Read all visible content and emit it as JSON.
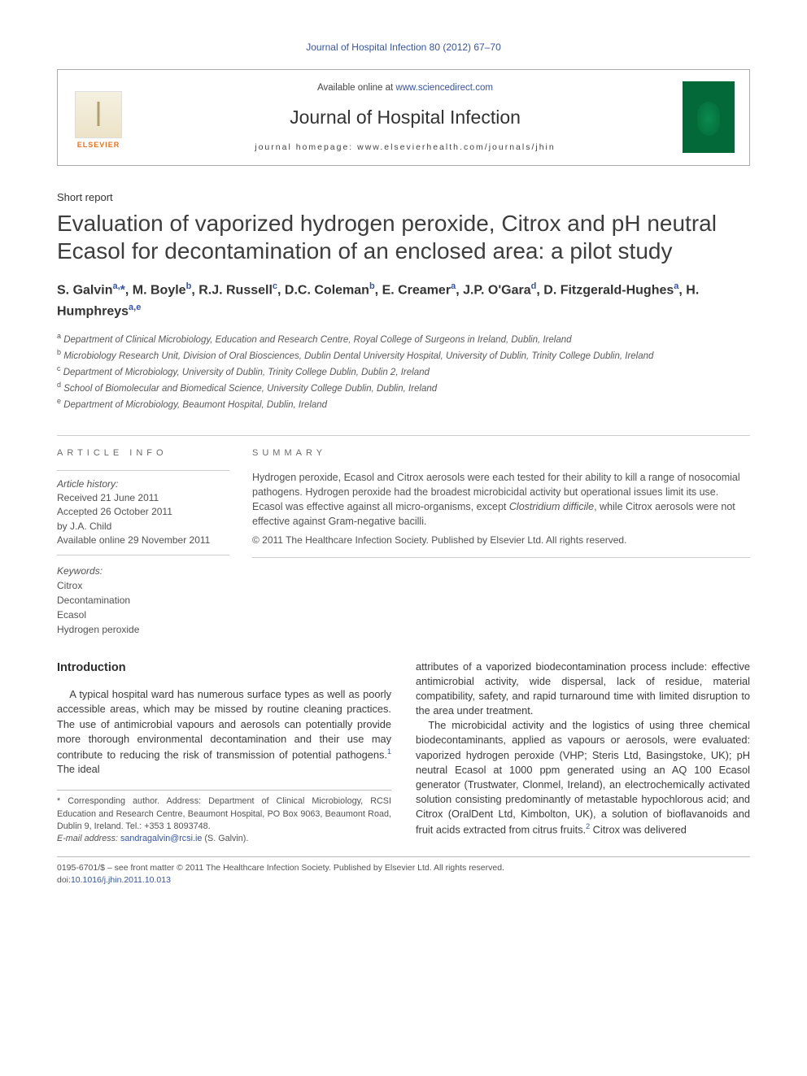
{
  "citation": "Journal of Hospital Infection 80 (2012) 67–70",
  "header": {
    "elsevier_label": "ELSEVIER",
    "available_prefix": "Available online at ",
    "available_link": "www.sciencedirect.com",
    "journal_name": "Journal of Hospital Infection",
    "homepage": "journal homepage: www.elsevierhealth.com/journals/jhin"
  },
  "article_type": "Short report",
  "title": "Evaluation of vaporized hydrogen peroxide, Citrox and pH neutral Ecasol for decontamination of an enclosed area: a pilot study",
  "authors_html": "S. Galvin<sup>a,</sup><span class='star'>*</span>, M. Boyle<sup>b</sup>, R.J. Russell<sup>c</sup>, D.C. Coleman<sup>b</sup>, E. Creamer<sup>a</sup>, J.P. O'Gara<sup>d</sup>, D. Fitzgerald-Hughes<sup>a</sup>, H. Humphreys<sup>a,e</sup>",
  "affiliations": [
    {
      "idx": "a",
      "text": "Department of Clinical Microbiology, Education and Research Centre, Royal College of Surgeons in Ireland, Dublin, Ireland"
    },
    {
      "idx": "b",
      "text": "Microbiology Research Unit, Division of Oral Biosciences, Dublin Dental University Hospital, University of Dublin, Trinity College Dublin, Ireland"
    },
    {
      "idx": "c",
      "text": "Department of Microbiology, University of Dublin, Trinity College Dublin, Dublin 2, Ireland"
    },
    {
      "idx": "d",
      "text": "School of Biomolecular and Biomedical Science, University College Dublin, Dublin, Ireland"
    },
    {
      "idx": "e",
      "text": "Department of Microbiology, Beaumont Hospital, Dublin, Ireland"
    }
  ],
  "article_info": {
    "label": "ARTICLE INFO",
    "history_label": "Article history:",
    "received": "Received 21 June 2011",
    "accepted": "Accepted 26 October 2011",
    "editor": "by J.A. Child",
    "online": "Available online 29 November 2011",
    "keywords_label": "Keywords:",
    "keywords": [
      "Citrox",
      "Decontamination",
      "Ecasol",
      "Hydrogen peroxide"
    ]
  },
  "summary": {
    "label": "SUMMARY",
    "text_html": "Hydrogen peroxide, Ecasol and Citrox aerosols were each tested for their ability to kill a range of nosocomial pathogens. Hydrogen peroxide had the broadest microbicidal activity but operational issues limit its use. Ecasol was effective against all micro-organisms, except <em>Clostridium difficile</em>, while Citrox aerosols were not effective against Gram-negative bacilli.",
    "copyright": "© 2011 The Healthcare Infection Society. Published by Elsevier Ltd. All rights reserved."
  },
  "body": {
    "intro_heading": "Introduction",
    "para1_html": "A typical hospital ward has numerous surface types as well as poorly accessible areas, which may be missed by routine cleaning practices. The use of antimicrobial vapours and aerosols can potentially provide more thorough environmental decontamination and their use may contribute to reducing the risk of transmission of potential pathogens.<sup>1</sup> The ideal",
    "para2_html": "attributes of a vaporized biodecontamination process include: effective antimicrobial activity, wide dispersal, lack of residue, material compatibility, safety, and rapid turnaround time with limited disruption to the area under treatment.",
    "para3_html": "The microbicidal activity and the logistics of using three chemical biodecontaminants, applied as vapours or aerosols, were evaluated: vaporized hydrogen peroxide (VHP; Steris Ltd, Basingstoke, UK); pH neutral Ecasol at 1000 ppm generated using an AQ 100 Ecasol generator (Trustwater, Clonmel, Ireland), an electrochemically activated solution consisting predominantly of metastable hypochlorous acid; and Citrox (OralDent Ltd, Kimbolton, UK), a solution of bioflavanoids and fruit acids extracted from citrus fruits.<sup>2</sup> Citrox was delivered"
  },
  "footnote": {
    "corresponding": "* Corresponding author. Address: Department of Clinical Microbiology, RCSI Education and Research Centre, Beaumont Hospital, PO Box 9063, Beaumont Road, Dublin 9, Ireland. Tel.: +353 1 8093748.",
    "email_label": "E-mail address: ",
    "email": "sandragalvin@rcsi.ie",
    "email_suffix": " (S. Galvin)."
  },
  "bottom": {
    "line1": "0195-6701/$ – see front matter © 2011 The Healthcare Infection Society. Published by Elsevier Ltd. All rights reserved.",
    "doi_prefix": "doi:",
    "doi": "10.1016/j.jhin.2011.10.013"
  },
  "colors": {
    "link": "#3753a4",
    "text": "#313131",
    "muted": "#555555",
    "border": "#cccccc",
    "elsevier_orange": "#e9711c",
    "cover_green": "#046938"
  }
}
